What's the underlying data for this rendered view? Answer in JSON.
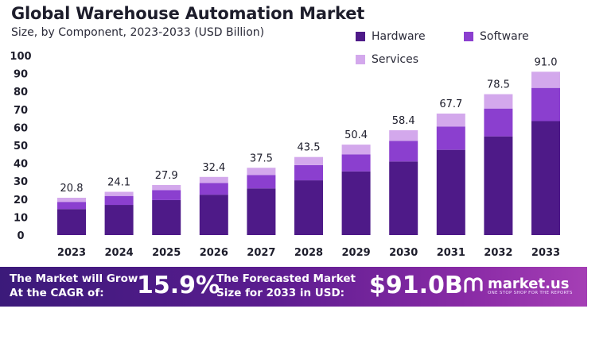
{
  "header": {
    "title": "Global Warehouse Automation Market",
    "subtitle": "Size, by Component, 2023-2033 (USD Billion)"
  },
  "legend": [
    {
      "label": "Hardware",
      "color": "#4e1a88"
    },
    {
      "label": "Software",
      "color": "#8b3fcf"
    },
    {
      "label": "Services",
      "color": "#d3a8ec"
    }
  ],
  "chart_data": {
    "type": "bar",
    "stacked": true,
    "title": "Global Warehouse Automation Market",
    "subtitle": "Size, by Component, 2023-2033 (USD Billion)",
    "categories": [
      "2023",
      "2024",
      "2025",
      "2026",
      "2027",
      "2028",
      "2029",
      "2030",
      "2031",
      "2032",
      "2033"
    ],
    "series": [
      {
        "name": "Hardware",
        "color": "#4e1a88",
        "values": [
          14.5,
          16.8,
          19.5,
          22.5,
          26.0,
          30.5,
          35.5,
          41.0,
          47.5,
          55.0,
          63.5
        ]
      },
      {
        "name": "Software",
        "color": "#8b3fcf",
        "values": [
          4.0,
          5.0,
          5.5,
          6.5,
          7.5,
          8.5,
          9.5,
          11.5,
          13.0,
          15.5,
          18.5
        ]
      },
      {
        "name": "Services",
        "color": "#d3a8ec",
        "values": [
          2.3,
          2.3,
          2.9,
          3.4,
          4.0,
          4.5,
          5.4,
          5.9,
          7.2,
          8.0,
          9.0
        ]
      }
    ],
    "totals": [
      "20.8",
      "24.1",
      "27.9",
      "32.4",
      "37.5",
      "43.5",
      "50.4",
      "58.4",
      "67.7",
      "78.5",
      "91.0"
    ],
    "y_ticks": [
      0,
      10,
      20,
      30,
      40,
      50,
      60,
      70,
      80,
      90,
      100
    ],
    "ylim": [
      0,
      100
    ],
    "grid": false,
    "legend_position": "top-right"
  },
  "banner": {
    "grow_line1": "The Market will Grow",
    "grow_line2": "At the CAGR of:",
    "cagr": "15.9%",
    "forecast_line1": "The Forecasted Market",
    "forecast_line2": "Size for 2033 in USD:",
    "value": "$91.0B",
    "brand": "market.us",
    "brand_tagline": "ONE STOP SHOP FOR THE REPORTS"
  }
}
